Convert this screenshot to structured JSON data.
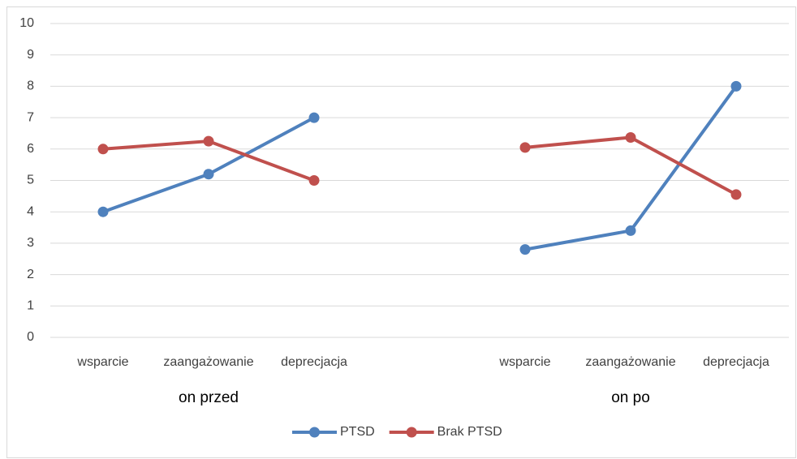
{
  "chart_data": {
    "type": "line",
    "categories": [
      "wsparcie",
      "zaangażowanie",
      "deprecjacja",
      null,
      "wsparcie",
      "zaangażowanie",
      "deprecjacja"
    ],
    "group_labels": [
      "on przed",
      "on po"
    ],
    "series": [
      {
        "name": "PTSD",
        "color": "#4f81bd",
        "values": [
          4,
          5.2,
          7,
          null,
          2.8,
          3.4,
          8
        ]
      },
      {
        "name": "Brak PTSD",
        "color": "#c0504d",
        "values": [
          6,
          6.25,
          5,
          null,
          6.05,
          6.37,
          4.55
        ]
      }
    ],
    "ylim": [
      0,
      10
    ],
    "yticks": [
      0,
      1,
      2,
      3,
      4,
      5,
      6,
      7,
      8,
      9,
      10
    ],
    "grid": true,
    "legend": "bottom"
  }
}
